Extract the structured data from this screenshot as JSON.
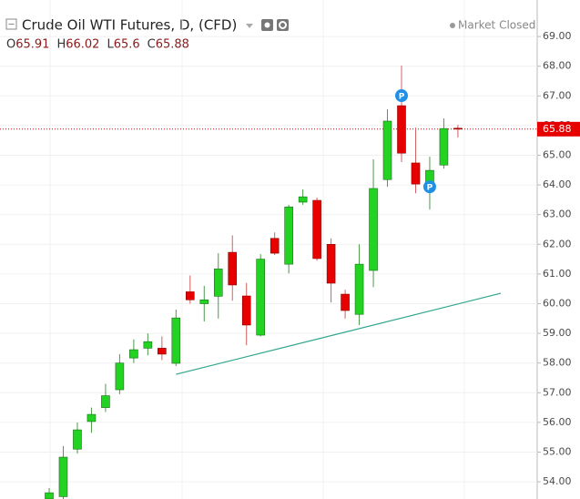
{
  "chart_data": {
    "type": "candlestick",
    "title": "Crude Oil WTI Futures, D, (CFD)",
    "status": "Market Closed",
    "ohlc_letters": [
      "O",
      "H",
      "L",
      "C"
    ],
    "series": {
      "open": [
        53.42,
        53.5,
        55.1,
        56.03,
        56.5,
        57.1,
        58.17,
        58.5,
        58.5,
        57.99,
        60.4,
        60.0,
        60.25,
        61.73,
        60.26,
        58.94,
        62.2,
        61.33,
        63.42,
        63.48,
        62.0,
        60.32,
        59.64,
        61.12,
        64.18,
        66.67,
        64.74,
        63.88,
        64.67,
        65.91
      ],
      "high": [
        53.79,
        55.2,
        56.0,
        56.5,
        57.3,
        58.3,
        58.8,
        59.0,
        58.9,
        59.8,
        60.95,
        60.6,
        61.7,
        62.3,
        60.7,
        61.67,
        62.4,
        63.33,
        63.85,
        63.57,
        62.2,
        60.47,
        62.0,
        64.86,
        66.55,
        68.02,
        65.93,
        64.95,
        66.24,
        66.02
      ],
      "low": [
        53.42,
        53.4,
        54.95,
        55.65,
        56.35,
        56.95,
        58.0,
        58.26,
        58.1,
        57.9,
        60.0,
        59.4,
        59.5,
        60.1,
        58.6,
        58.9,
        61.64,
        61.02,
        63.33,
        61.45,
        60.04,
        59.5,
        59.28,
        60.56,
        63.94,
        64.77,
        63.72,
        63.17,
        64.55,
        65.6
      ],
      "close": [
        53.63,
        54.83,
        55.75,
        56.27,
        56.9,
        58.0,
        58.45,
        58.72,
        58.3,
        59.52,
        60.13,
        60.13,
        61.17,
        60.63,
        59.28,
        61.5,
        61.7,
        63.26,
        63.6,
        61.52,
        60.69,
        59.77,
        61.33,
        63.88,
        66.15,
        65.07,
        64.03,
        64.49,
        65.9,
        65.88
      ]
    },
    "up_color": "#22d322",
    "down_color": "#e60000",
    "ylim": [
      53.42,
      70.23
    ],
    "yticks": [
      {
        "value": 54,
        "label": "54.00"
      },
      {
        "value": 55,
        "label": "55.00"
      },
      {
        "value": 56,
        "label": "56.00"
      },
      {
        "value": 57,
        "label": "57.00"
      },
      {
        "value": 58,
        "label": "58.00"
      },
      {
        "value": 59,
        "label": "59.00"
      },
      {
        "value": 60,
        "label": "60.00"
      },
      {
        "value": 61,
        "label": "61.00"
      },
      {
        "value": 62,
        "label": "62.00"
      },
      {
        "value": 63,
        "label": "63.00"
      },
      {
        "value": 64,
        "label": "64.00"
      },
      {
        "value": 65,
        "label": "65.00"
      },
      {
        "value": 66,
        "label": "66.00"
      },
      {
        "value": 67,
        "label": "67.00"
      },
      {
        "value": 68,
        "label": "68.00"
      },
      {
        "value": 69,
        "label": "69.00"
      }
    ],
    "grid": true,
    "trendline": {
      "start": [
        9,
        57.62
      ],
      "end": [
        32.04,
        60.35
      ],
      "color": "#2aa48c"
    },
    "events": [
      {
        "index": 25,
        "label": "P"
      },
      {
        "index": 27,
        "label": "P"
      }
    ]
  }
}
